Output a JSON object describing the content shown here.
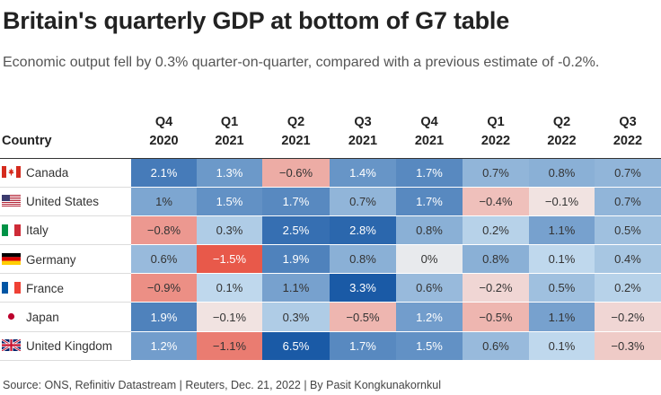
{
  "title": "Britain's quarterly GDP at bottom of G7 table",
  "subtitle": "Economic output fell by 0.3% quarter-on-quarter, compared with a previous estimate of -0.2%.",
  "source": "Source: ONS, Refinitiv Datastream | Reuters, Dec. 21, 2022 | By Pasit Kongkunakornkul",
  "country_header": "Country",
  "quarters": [
    {
      "q": "Q4",
      "y": "2020"
    },
    {
      "q": "Q1",
      "y": "2021"
    },
    {
      "q": "Q2",
      "y": "2021"
    },
    {
      "q": "Q3",
      "y": "2021"
    },
    {
      "q": "Q4",
      "y": "2021"
    },
    {
      "q": "Q1",
      "y": "2022"
    },
    {
      "q": "Q2",
      "y": "2022"
    },
    {
      "q": "Q3",
      "y": "2022"
    }
  ],
  "rows": [
    {
      "country": "Canada",
      "flag": "canada-flag-icon",
      "labels": [
        "2.1%",
        "1.3%",
        "−0.6%",
        "1.4%",
        "1.7%",
        "0.7%",
        "0.8%",
        "0.7%"
      ]
    },
    {
      "country": "United States",
      "flag": "usa-flag-icon",
      "labels": [
        "1%",
        "1.5%",
        "1.7%",
        "0.7%",
        "1.7%",
        "−0.4%",
        "−0.1%",
        "0.7%"
      ]
    },
    {
      "country": "Italy",
      "flag": "italy-flag-icon",
      "labels": [
        "−0.8%",
        "0.3%",
        "2.5%",
        "2.8%",
        "0.8%",
        "0.2%",
        "1.1%",
        "0.5%"
      ]
    },
    {
      "country": "Germany",
      "flag": "germany-flag-icon",
      "labels": [
        "0.6%",
        "−1.5%",
        "1.9%",
        "0.8%",
        "0%",
        "0.8%",
        "0.1%",
        "0.4%"
      ]
    },
    {
      "country": "France",
      "flag": "france-flag-icon",
      "labels": [
        "−0.9%",
        "0.1%",
        "1.1%",
        "3.3%",
        "0.6%",
        "−0.2%",
        "0.5%",
        "0.2%"
      ]
    },
    {
      "country": "Japan",
      "flag": "japan-flag-icon",
      "labels": [
        "1.9%",
        "−0.1%",
        "0.3%",
        "−0.5%",
        "1.2%",
        "−0.5%",
        "1.1%",
        "−0.2%"
      ]
    },
    {
      "country": "United Kingdom",
      "flag": "uk-flag-icon",
      "labels": [
        "1.2%",
        "−1.1%",
        "6.5%",
        "1.7%",
        "1.5%",
        "0.6%",
        "0.1%",
        "−0.3%"
      ]
    }
  ],
  "chart_data": {
    "type": "heatmap",
    "title": "Britain's quarterly GDP at bottom of G7 table",
    "subtitle": "Economic output fell by 0.3% quarter-on-quarter, compared with a previous estimate of -0.2%.",
    "unit": "% change quarter-on-quarter",
    "x": [
      "Q4 2020",
      "Q1 2021",
      "Q2 2021",
      "Q3 2021",
      "Q4 2021",
      "Q1 2022",
      "Q2 2022",
      "Q3 2022"
    ],
    "y": [
      "Canada",
      "United States",
      "Italy",
      "Germany",
      "France",
      "Japan",
      "United Kingdom"
    ],
    "values": [
      [
        2.1,
        1.3,
        -0.6,
        1.4,
        1.7,
        0.7,
        0.8,
        0.7
      ],
      [
        1.0,
        1.5,
        1.7,
        0.7,
        1.7,
        -0.4,
        -0.1,
        0.7
      ],
      [
        -0.8,
        0.3,
        2.5,
        2.8,
        0.8,
        0.2,
        1.1,
        0.5
      ],
      [
        0.6,
        -1.5,
        1.9,
        0.8,
        0.0,
        0.8,
        0.1,
        0.4
      ],
      [
        -0.9,
        0.1,
        1.1,
        3.3,
        0.6,
        -0.2,
        0.5,
        0.2
      ],
      [
        1.9,
        -0.1,
        0.3,
        -0.5,
        1.2,
        -0.5,
        1.1,
        -0.2
      ],
      [
        1.2,
        -1.1,
        6.5,
        1.7,
        1.5,
        0.6,
        0.1,
        -0.3
      ]
    ],
    "color_scale": {
      "negative": "#e8594a",
      "zero": "#f2f2f2",
      "positive": "#1a5aa6"
    }
  }
}
